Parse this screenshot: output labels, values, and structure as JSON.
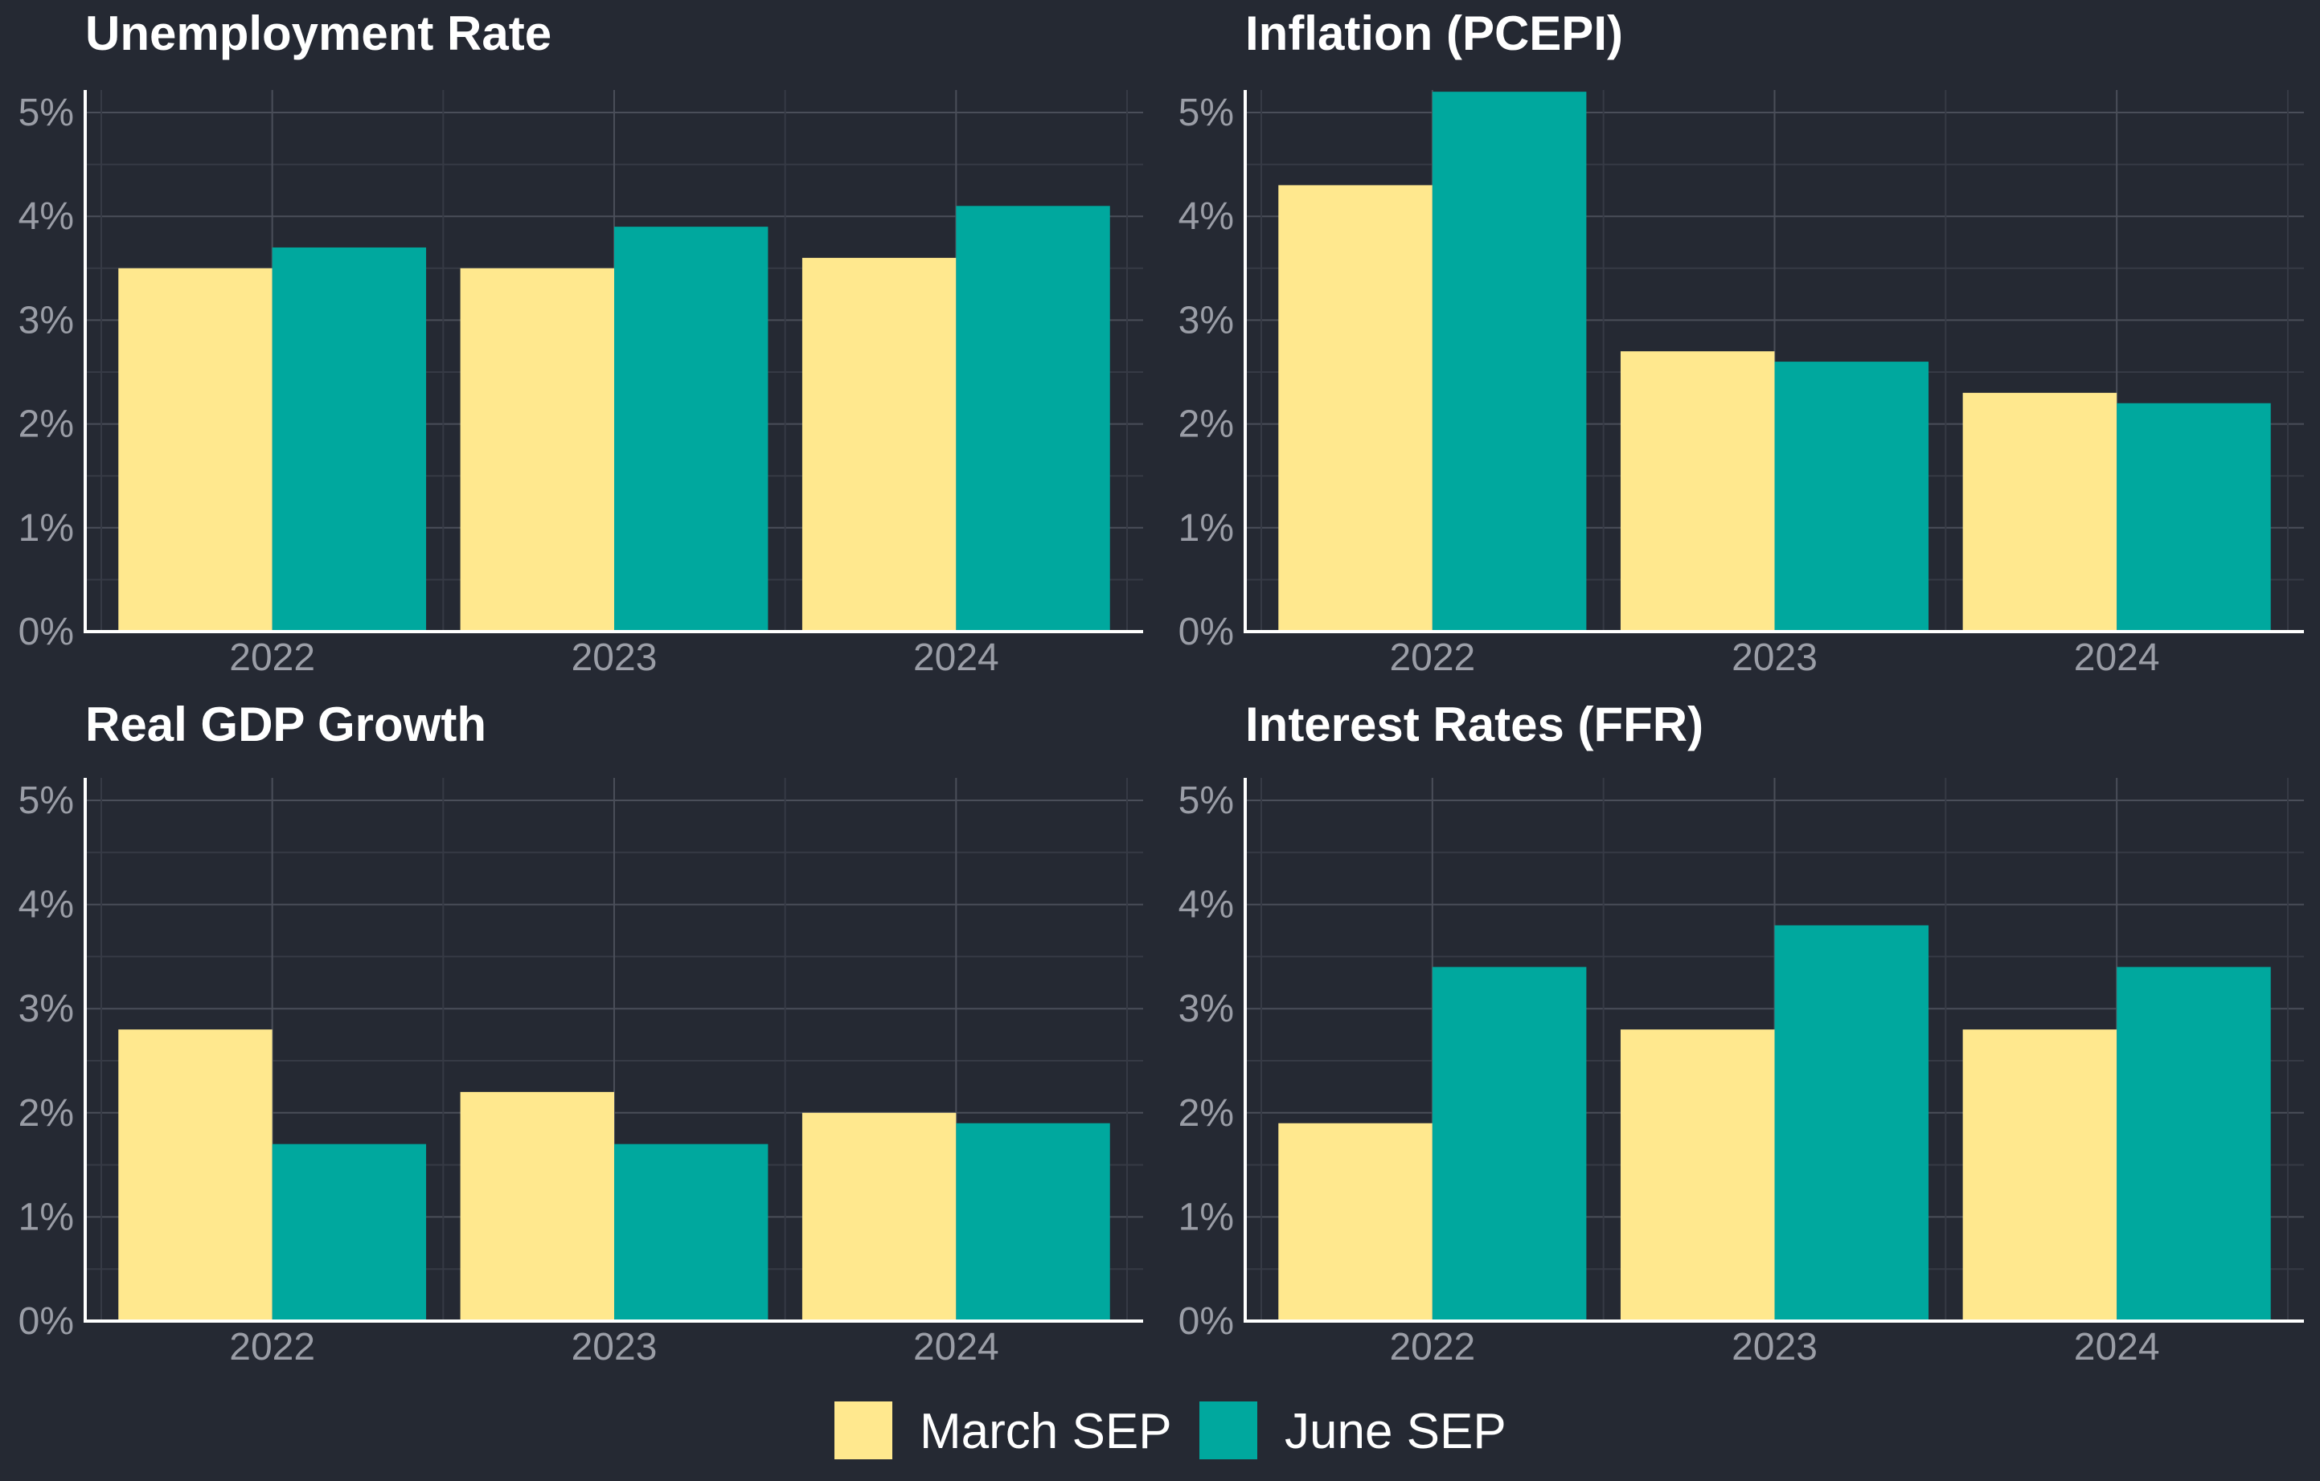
{
  "chart_data": [
    {
      "type": "bar",
      "title": "Unemployment Rate",
      "categories": [
        "2022",
        "2023",
        "2024"
      ],
      "series": [
        {
          "name": "March SEP",
          "values": [
            3.5,
            3.5,
            3.6
          ]
        },
        {
          "name": "June SEP",
          "values": [
            3.7,
            3.9,
            4.1
          ]
        }
      ],
      "ylim": [
        0,
        5
      ],
      "yticks": [
        "0%",
        "1%",
        "2%",
        "3%",
        "4%",
        "5%"
      ],
      "grid": true
    },
    {
      "type": "bar",
      "title": "Inflation (PCEPI)",
      "categories": [
        "2022",
        "2023",
        "2024"
      ],
      "series": [
        {
          "name": "March SEP",
          "values": [
            4.3,
            2.7,
            2.3
          ]
        },
        {
          "name": "June SEP",
          "values": [
            5.2,
            2.6,
            2.2
          ]
        }
      ],
      "ylim": [
        0,
        5
      ],
      "yticks": [
        "0%",
        "1%",
        "2%",
        "3%",
        "4%",
        "5%"
      ],
      "grid": true
    },
    {
      "type": "bar",
      "title": "Real GDP Growth",
      "categories": [
        "2022",
        "2023",
        "2024"
      ],
      "series": [
        {
          "name": "March SEP",
          "values": [
            2.8,
            2.2,
            2.0
          ]
        },
        {
          "name": "June SEP",
          "values": [
            1.7,
            1.7,
            1.9
          ]
        }
      ],
      "ylim": [
        0,
        5
      ],
      "yticks": [
        "0%",
        "1%",
        "2%",
        "3%",
        "4%",
        "5%"
      ],
      "grid": true
    },
    {
      "type": "bar",
      "title": "Interest Rates (FFR)",
      "categories": [
        "2022",
        "2023",
        "2024"
      ],
      "series": [
        {
          "name": "March SEP",
          "values": [
            1.9,
            2.8,
            2.8
          ]
        },
        {
          "name": "June SEP",
          "values": [
            3.4,
            3.8,
            3.4
          ]
        }
      ],
      "ylim": [
        0,
        5
      ],
      "yticks": [
        "0%",
        "1%",
        "2%",
        "3%",
        "4%",
        "5%"
      ],
      "grid": true
    }
  ],
  "legend": {
    "placement": "bottom",
    "items": [
      {
        "label": "March SEP",
        "color": "#ffe88e"
      },
      {
        "label": "June SEP",
        "color": "#00a89e"
      }
    ]
  },
  "colors": {
    "background": "#252933",
    "march": "#ffe88e",
    "june": "#00a89e"
  }
}
